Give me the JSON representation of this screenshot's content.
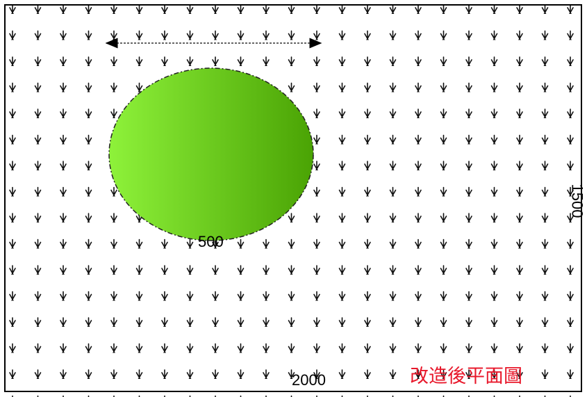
{
  "plan": {
    "title": "改造後平面圖",
    "width_label": "2000",
    "height_label": "1500",
    "circle_diameter_label": "500",
    "colors": {
      "title": "#e8182b",
      "circle_light": "#8ef23a",
      "circle_dark": "#4aa304",
      "grass": "#111111",
      "frame": "#000000"
    },
    "icons": {
      "grass_pattern": "grass-tuft-icon",
      "dimension_arrow": "double-arrow-icon"
    }
  }
}
